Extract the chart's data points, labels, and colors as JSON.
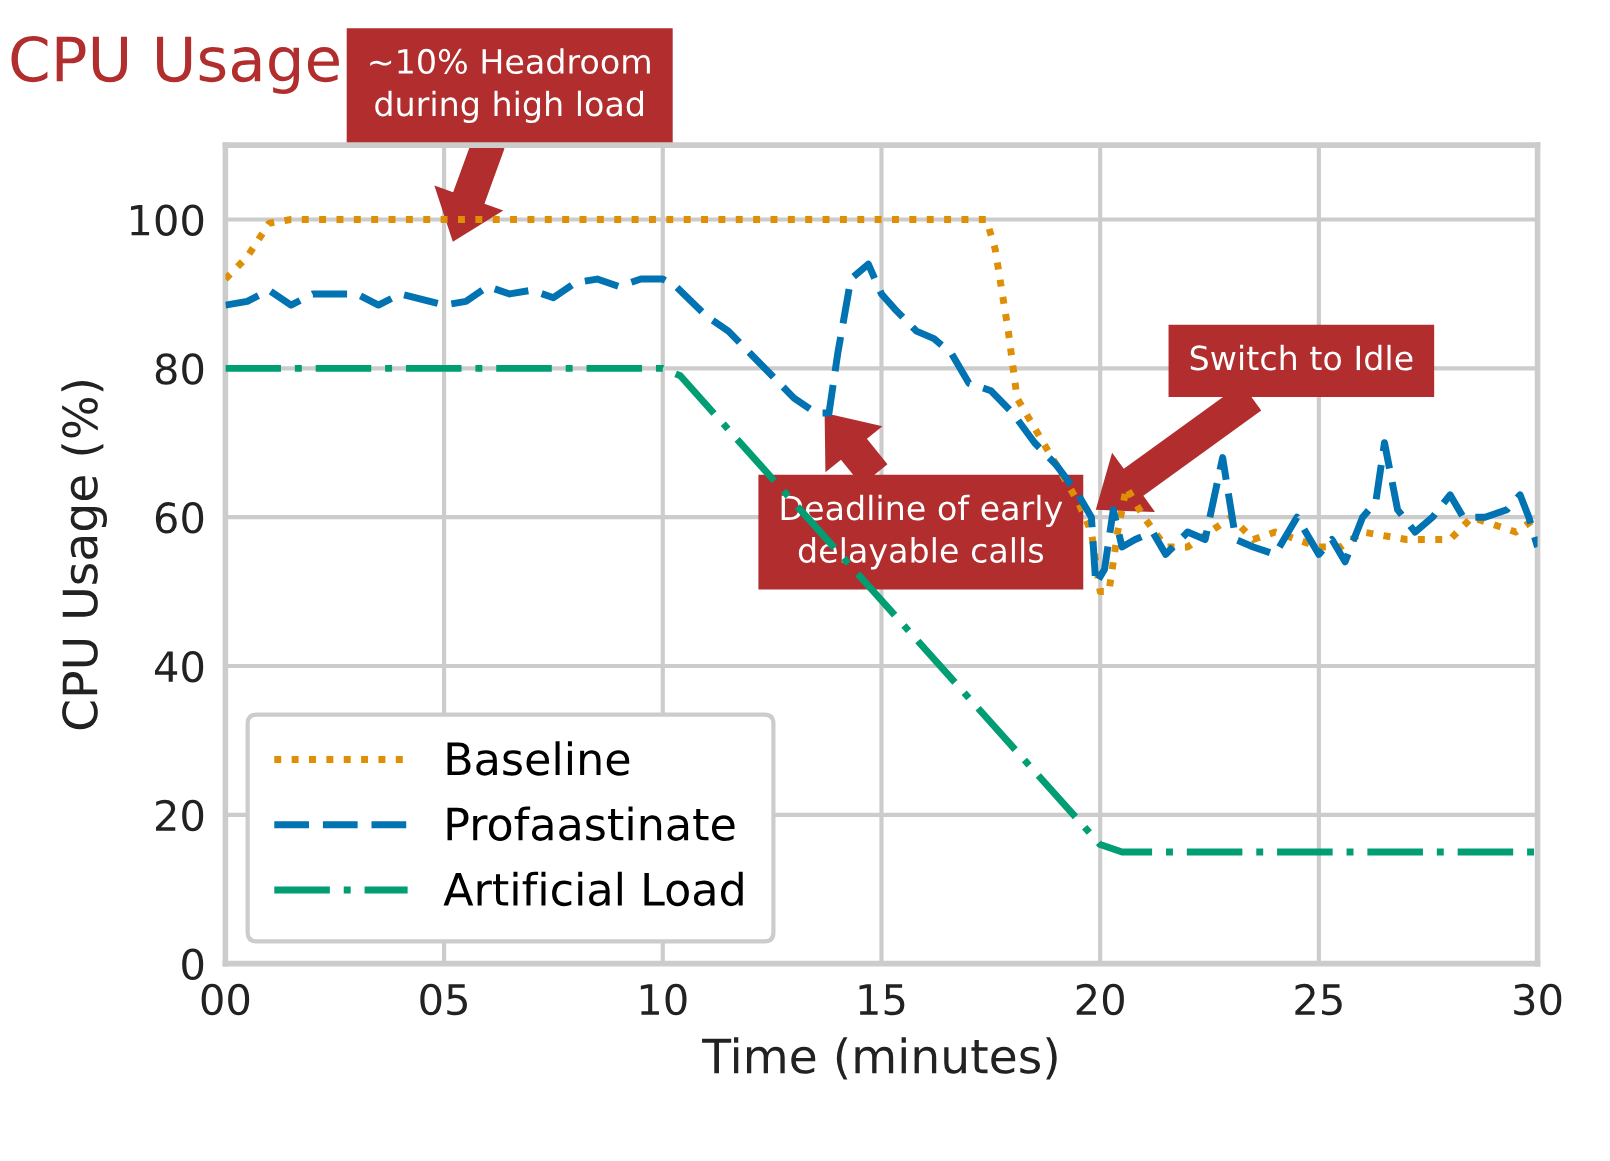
{
  "chart_data": {
    "type": "line",
    "title": "CPU Usage",
    "xlabel": "Time (minutes)",
    "ylabel": "CPU Usage (%)",
    "xlim": [
      0,
      30
    ],
    "xticks": [
      {
        "value": 0,
        "label": "00"
      },
      {
        "value": 5,
        "label": "05"
      },
      10,
      15,
      20,
      25,
      30
    ],
    "ylim": [
      0,
      110
    ],
    "yticks": [
      0,
      20,
      40,
      60,
      80,
      100
    ],
    "grid": true,
    "legend": "bottom left",
    "series": [
      {
        "name": "Baseline",
        "color": "#de8f05",
        "line_style": "dotted",
        "x": [
          0,
          0.5,
          1,
          1.5,
          5,
          10,
          15,
          17.4,
          17.6,
          17.9,
          18.1,
          18.5,
          19,
          19.5,
          19.8,
          20,
          20.2,
          20.4,
          20.6,
          21,
          21.5,
          22,
          22.5,
          23,
          23.5,
          24,
          25,
          25.5,
          26,
          27,
          28,
          28.5,
          29,
          29.5,
          30
        ],
        "values": [
          92,
          95,
          99.5,
          100,
          100,
          100,
          100,
          100,
          96,
          85,
          76,
          72,
          67,
          62,
          58,
          50,
          50,
          58,
          64,
          60,
          56,
          56,
          58,
          60,
          57,
          58,
          56,
          56,
          58,
          57,
          57,
          60,
          59,
          58,
          60
        ]
      },
      {
        "name": "Profaastinate",
        "color": "#0173b2",
        "line_style": "dashed",
        "x": [
          0,
          0.5,
          1,
          1.5,
          2,
          3,
          3.5,
          4,
          5,
          5.5,
          6,
          6.5,
          7,
          7.5,
          8,
          8.5,
          9,
          9.5,
          10,
          10.3,
          11,
          11.5,
          12,
          12.5,
          13,
          13.5,
          13.8,
          14,
          14.3,
          14.7,
          15,
          15.3,
          15.8,
          16.2,
          16.6,
          17,
          17.5,
          18,
          18.5,
          19,
          19.5,
          19.8,
          19.9,
          20.1,
          20.3,
          20.5,
          20.8,
          21.2,
          21.5,
          22,
          22.4,
          22.8,
          23.1,
          23.5,
          24,
          24.5,
          25,
          25.3,
          25.6,
          26,
          26.3,
          26.5,
          26.8,
          27.2,
          27.6,
          28,
          28.3,
          28.8,
          29.3,
          29.6,
          29.8,
          30
        ],
        "values": [
          88.5,
          89,
          90.5,
          88.5,
          90,
          90,
          88.5,
          90,
          88.5,
          89,
          91,
          90,
          90.5,
          89.5,
          91.5,
          92,
          91,
          92,
          92,
          91,
          87,
          85,
          82,
          79,
          76,
          74,
          74,
          82,
          92,
          94,
          90,
          88,
          85,
          84,
          82,
          78,
          77,
          74,
          70,
          67,
          63,
          60,
          51,
          53,
          61,
          56,
          57,
          58,
          55,
          58,
          57,
          68,
          57,
          56,
          55,
          60,
          55,
          57,
          54,
          60,
          62,
          70,
          61,
          58,
          60,
          63,
          60,
          60,
          61,
          63,
          60,
          56
        ]
      },
      {
        "name": "Artificial Load",
        "color": "#029e73",
        "line_style": "dashdot",
        "x": [
          0,
          10,
          10.4,
          20,
          20.5,
          30
        ],
        "values": [
          80,
          80,
          79,
          16,
          15,
          15
        ]
      }
    ],
    "annotations": [
      "~10% Headroom\nduring high load",
      "Deadline of early\ndelayable calls",
      "Switch to Idle"
    ]
  }
}
